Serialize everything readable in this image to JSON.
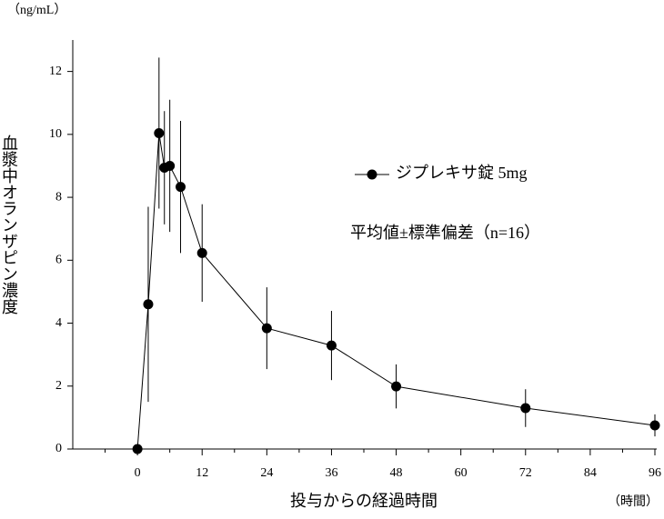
{
  "chart_data": {
    "type": "line",
    "y_unit": "（ng/mL）",
    "ylabel": "血漿中オランザピン濃度",
    "xlabel": "投与からの経過時間",
    "x_unit": "（時間）",
    "annotation": "平均値±標準偏差（n=16）",
    "x": [
      0,
      2,
      4,
      5,
      6,
      8,
      12,
      24,
      36,
      48,
      72,
      96
    ],
    "series": [
      {
        "name": "ジプレキサ錠 5mg",
        "color": "#000000",
        "values": [
          0,
          4.6,
          10.04,
          8.94,
          9.0,
          8.33,
          6.23,
          3.84,
          3.29,
          1.99,
          1.3,
          0.75
        ],
        "errors": [
          null,
          3.1,
          2.4,
          1.8,
          2.1,
          2.1,
          1.55,
          1.3,
          1.1,
          0.7,
          0.6,
          0.35
        ]
      }
    ],
    "xlim": [
      -12,
      96
    ],
    "xticks": [
      0,
      12,
      24,
      36,
      48,
      60,
      72,
      84,
      96
    ],
    "xminorticks": [
      -6,
      6,
      18,
      30,
      42,
      54,
      66,
      78,
      90
    ],
    "ylim": [
      0,
      13
    ],
    "yticks": [
      0,
      2,
      4,
      6,
      8,
      10,
      12
    ],
    "grid": false
  }
}
